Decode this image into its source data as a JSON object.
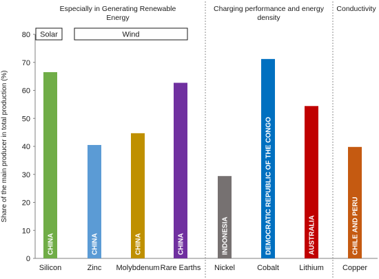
{
  "chart_data": {
    "type": "bar",
    "ylabel": "Share of the main producer in total production (%)",
    "ylim": [
      0,
      80
    ],
    "yticks": [
      "0",
      "10",
      "20",
      "30",
      "40",
      "50",
      "60",
      "70",
      "80"
    ],
    "categories": [
      "Silicon",
      "Zinc",
      "Molybdenum",
      "Rare Earths",
      "Nickel",
      "Cobalt",
      "Lithium",
      "Copper"
    ],
    "values": [
      66.5,
      40.5,
      44.7,
      62.7,
      29.4,
      71.2,
      54.4,
      39.8
    ],
    "producers": [
      "CHINA",
      "CHINA",
      "CHINA",
      "CHINA",
      "INDONESIA",
      "DEMOCRATIC REPUBLIC OF THE CONGO",
      "AUSTRALIA",
      "CHILE AND PERU"
    ],
    "colors": [
      "#70ad47",
      "#5b9bd5",
      "#bf9000",
      "#7030a0",
      "#767171",
      "#0070c0",
      "#c00000",
      "#c55a11"
    ],
    "sections": [
      {
        "title_lines": [
          "Especially in Generating Renewable",
          "Energy"
        ],
        "span": [
          0,
          3
        ]
      },
      {
        "title_lines": [
          "Charging performance and energy",
          "density"
        ],
        "span": [
          4,
          6
        ]
      },
      {
        "title_lines": [
          "Conductivity"
        ],
        "span": [
          7,
          7
        ]
      }
    ],
    "groups": [
      {
        "label": "Solar",
        "span": [
          0,
          0
        ]
      },
      {
        "label": "Wind",
        "span": [
          1,
          3
        ]
      }
    ],
    "grid": false,
    "legend": "none"
  }
}
